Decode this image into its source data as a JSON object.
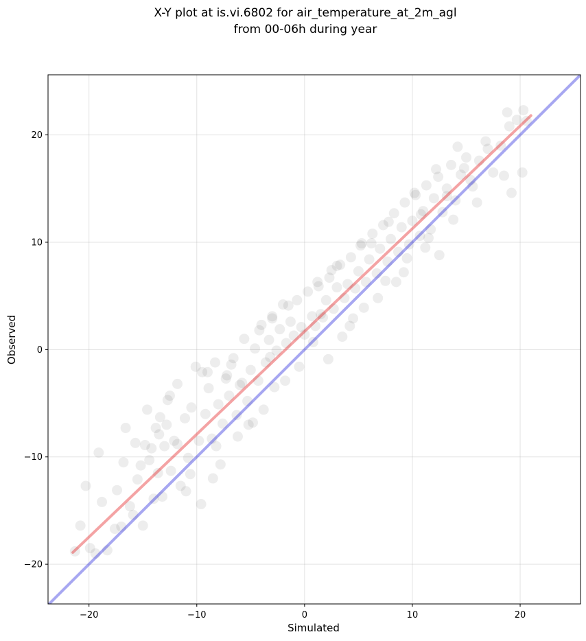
{
  "chart_data": {
    "type": "scatter",
    "title_line1": "X-Y plot at is.vi.6802 for air_temperature_at_2m_agl",
    "title_line2": "from 00-06h during year",
    "xlabel": "Simulated",
    "ylabel": "Observed",
    "xlim": [
      -23.8,
      25.6
    ],
    "ylim": [
      -23.7,
      25.6
    ],
    "xticks": [
      -20,
      -10,
      0,
      10,
      20
    ],
    "yticks": [
      -20,
      -10,
      0,
      10,
      20
    ],
    "xtick_labels": [
      "−20",
      "−10",
      "0",
      "10",
      "20"
    ],
    "ytick_labels": [
      "−20",
      "−10",
      "0",
      "10",
      "20"
    ],
    "grid": true,
    "point_color": "#000000",
    "point_alpha": 0.07,
    "series": [
      {
        "kind": "fit-line",
        "color": "#e41a1c",
        "x": [
          -21.5,
          21.0
        ],
        "y": [
          -18.9,
          21.8
        ]
      },
      {
        "kind": "identity-line",
        "color": "#2222dd",
        "x": [
          -23.8,
          25.6
        ],
        "y": [
          -23.8,
          25.6
        ]
      }
    ],
    "points": {
      "x": [
        -21.3,
        -20.8,
        -20.3,
        -19.9,
        -19.4,
        -19.1,
        -18.8,
        -18.3,
        -17.6,
        -17.4,
        -17.0,
        -16.6,
        -16.2,
        -15.9,
        -15.7,
        -15.5,
        -15.2,
        -15.0,
        -14.6,
        -14.4,
        -14.2,
        -14.0,
        -13.8,
        -13.6,
        -13.4,
        -13.2,
        -13.0,
        -12.7,
        -12.4,
        -12.1,
        -11.8,
        -11.5,
        -11.1,
        -10.8,
        -10.5,
        -10.1,
        -9.8,
        -9.5,
        -9.2,
        -8.9,
        -8.6,
        -8.3,
        -8.0,
        -7.6,
        -7.3,
        -7.0,
        -6.6,
        -6.3,
        -6.0,
        -5.6,
        -5.3,
        -5.0,
        -4.6,
        -4.3,
        -4.0,
        -3.6,
        -3.3,
        -3.0,
        -2.6,
        -2.3,
        -2.0,
        -1.7,
        -1.3,
        -1.0,
        -0.7,
        -0.3,
        0.0,
        0.3,
        0.7,
        1.0,
        1.3,
        1.7,
        2.0,
        2.3,
        2.7,
        3.0,
        3.3,
        3.7,
        4.0,
        4.3,
        4.7,
        5.0,
        5.3,
        5.7,
        6.0,
        6.3,
        6.7,
        7.0,
        7.3,
        7.7,
        8.0,
        8.3,
        8.7,
        9.0,
        9.3,
        9.7,
        10.0,
        10.3,
        10.7,
        11.0,
        11.3,
        11.7,
        12.0,
        12.4,
        12.8,
        13.2,
        13.6,
        14.0,
        14.5,
        15.0,
        15.6,
        16.2,
        16.8,
        17.5,
        18.2,
        19.0,
        19.7,
        20.3,
        20.6,
        -14.8,
        -12.5,
        -11.0,
        -9.0,
        -7.8,
        -6.8,
        -5.2,
        -4.2,
        -2.8,
        -1.5,
        0.8,
        2.5,
        4.5,
        6.2,
        8.5,
        10.8,
        12.5,
        14.8,
        17.0,
        19.2,
        -16.8,
        -13.5,
        -10.6,
        -8.2,
        -6.2,
        -3.8,
        -1.8,
        1.5,
        3.5,
        5.5,
        7.5,
        9.5,
        11.5,
        13.8,
        16.0,
        18.5,
        -9.6,
        -11.8,
        -12.8,
        -8.5,
        -7.2,
        -5.8,
        -4.8,
        -3.2,
        -0.5,
        2.2,
        4.2,
        6.8,
        9.2,
        11.2,
        13.2,
        15.4,
        18.8,
        20.2,
        -3.0,
        1.2,
        3.0,
        5.2,
        7.8,
        10.2,
        12.2,
        14.2
      ],
      "y": [
        -18.8,
        -16.4,
        -12.7,
        -18.5,
        -19.0,
        -9.6,
        -14.2,
        -18.7,
        -16.7,
        -13.1,
        -16.5,
        -7.3,
        -14.6,
        -15.4,
        -8.7,
        -12.1,
        -10.8,
        -16.4,
        -5.6,
        -10.3,
        -9.2,
        -13.9,
        -7.3,
        -11.5,
        -6.3,
        -13.7,
        -9.0,
        -4.7,
        -11.3,
        -8.5,
        -3.2,
        -12.7,
        -6.4,
        -10.1,
        -5.4,
        -1.6,
        -8.5,
        -2.1,
        -6.0,
        -3.6,
        -8.3,
        -1.2,
        -5.1,
        -6.9,
        -2.7,
        -4.3,
        -0.8,
        -6.1,
        -3.3,
        1.0,
        -4.8,
        -1.9,
        0.1,
        -2.9,
        2.3,
        -1.2,
        0.9,
        3.1,
        -0.1,
        1.9,
        4.2,
        0.6,
        2.6,
        1.3,
        4.6,
        2.1,
        1.4,
        5.4,
        3.1,
        2.2,
        5.9,
        3.0,
        4.6,
        6.7,
        3.8,
        5.8,
        7.9,
        4.8,
        6.1,
        8.6,
        5.7,
        7.3,
        9.9,
        6.3,
        8.4,
        10.8,
        7.1,
        9.4,
        11.6,
        8.2,
        10.3,
        12.7,
        9.1,
        11.4,
        13.7,
        9.8,
        12.0,
        14.4,
        10.6,
        12.9,
        15.3,
        11.2,
        14.1,
        16.1,
        12.8,
        15.0,
        17.2,
        13.9,
        16.3,
        17.9,
        15.2,
        17.6,
        19.4,
        16.5,
        19.0,
        20.8,
        21.4,
        22.3,
        21.3,
        -8.9,
        -4.3,
        -13.2,
        -2.1,
        -10.7,
        -1.4,
        -7.0,
        1.8,
        -3.5,
        4.1,
        0.7,
        7.4,
        2.9,
        9.9,
        6.3,
        12.6,
        8.8,
        16.9,
        18.7,
        14.6,
        -10.5,
        -7.9,
        -11.6,
        -9.0,
        -8.1,
        -5.6,
        -2.9,
        3.3,
        1.2,
        3.9,
        6.4,
        8.5,
        10.4,
        12.1,
        13.7,
        16.2,
        -14.4,
        -8.8,
        -7.0,
        -12.0,
        -2.4,
        -3.1,
        -6.8,
        -0.7,
        -1.6,
        -0.9,
        2.2,
        4.8,
        7.2,
        9.5,
        14.3,
        15.8,
        22.1,
        16.5,
        2.9,
        6.3,
        7.8,
        9.7,
        11.9,
        14.6,
        16.8,
        18.9
      ]
    }
  }
}
